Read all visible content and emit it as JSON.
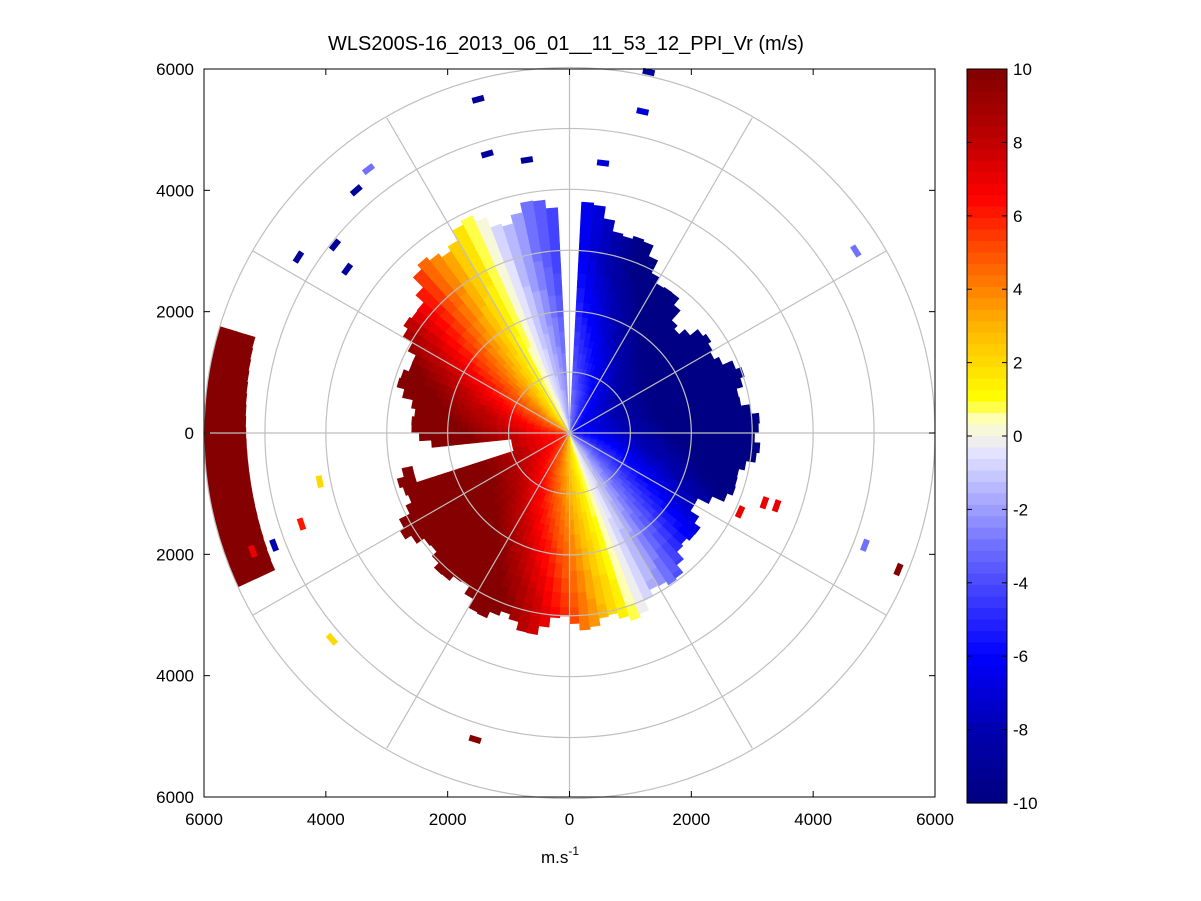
{
  "chart_data": {
    "type": "heatmap",
    "title": "WLS200S-16_2013_06_01__11_53_12_PPI_Vr (m/s)",
    "xlabel_base": "m.s",
    "xlabel_sup": "-1",
    "ylabel": "",
    "xlim": [
      -6000,
      6000
    ],
    "ylim": [
      -6000,
      6000
    ],
    "x_ticks": [
      -6000,
      -4000,
      -2000,
      0,
      2000,
      4000,
      6000
    ],
    "x_tick_labels": [
      "6000",
      "4000",
      "2000",
      "0",
      "2000",
      "4000",
      "6000"
    ],
    "y_ticks": [
      6000,
      4000,
      2000,
      0,
      -2000,
      -4000,
      -6000
    ],
    "y_tick_labels": [
      "6000",
      "4000",
      "2000",
      "0",
      "2000",
      "4000",
      "6000"
    ],
    "polar_grid": {
      "ring_radii": [
        1000,
        2000,
        3000,
        4000,
        5000,
        6000
      ],
      "spoke_angles_deg": [
        0,
        30,
        60,
        90,
        120,
        150,
        180,
        210,
        240,
        270,
        300,
        330
      ]
    },
    "colorbar": {
      "min": -10,
      "max": 10,
      "ticks": [
        10,
        8,
        6,
        4,
        2,
        0,
        -2,
        -4,
        -6,
        -8,
        -10
      ],
      "tick_labels": [
        "10",
        "8",
        "6",
        "4",
        "2",
        "0",
        "-2",
        "-4",
        "-6",
        "-8",
        "-10"
      ],
      "stops": [
        {
          "v": -10,
          "color": "#000080"
        },
        {
          "v": -8,
          "color": "#0000b0"
        },
        {
          "v": -6,
          "color": "#0000ff"
        },
        {
          "v": -3,
          "color": "#7070ff"
        },
        {
          "v": -0.4,
          "color": "#e6e6ff"
        },
        {
          "v": 0.4,
          "color": "#ffffc8"
        },
        {
          "v": 1,
          "color": "#ffff00"
        },
        {
          "v": 3,
          "color": "#ffb400"
        },
        {
          "v": 5,
          "color": "#ff5000"
        },
        {
          "v": 6.5,
          "color": "#ff0000"
        },
        {
          "v": 8,
          "color": "#c00000"
        },
        {
          "v": 10,
          "color": "#800000"
        }
      ]
    },
    "field": {
      "description_model": "radial velocity Vr ≈ -10·cos(θ - 22°) (θ measured counter-clockwise from +x), saturating at ±10 m/s",
      "zero_line_azimuth_deg": 112,
      "max_range_by_azimuth": [
        {
          "az": 0,
          "r": 3050
        },
        {
          "az": 10,
          "r": 2950
        },
        {
          "az": 20,
          "r": 2900
        },
        {
          "az": 30,
          "r": 2750
        },
        {
          "az": 45,
          "r": 2500
        },
        {
          "az": 60,
          "r": 3000
        },
        {
          "az": 75,
          "r": 3500
        },
        {
          "az": 88,
          "r": 3750
        },
        {
          "az": 92,
          "r": 3800
        },
        {
          "az": 105,
          "r": 3700
        },
        {
          "az": 120,
          "r": 3800
        },
        {
          "az": 135,
          "r": 3500
        },
        {
          "az": 150,
          "r": 3000
        },
        {
          "az": 165,
          "r": 2800
        },
        {
          "az": 175,
          "r": 2600
        },
        {
          "az": 185,
          "r": 2300
        },
        {
          "az": 195,
          "r": 2800
        },
        {
          "az": 210,
          "r": 3100
        },
        {
          "az": 225,
          "r": 3000
        },
        {
          "az": 240,
          "r": 3200
        },
        {
          "az": 255,
          "r": 3300
        },
        {
          "az": 270,
          "r": 3100
        },
        {
          "az": 285,
          "r": 3200
        },
        {
          "az": 300,
          "r": 3000
        },
        {
          "az": 315,
          "r": 2700
        },
        {
          "az": 330,
          "r": 2400
        },
        {
          "az": 345,
          "r": 2950
        },
        {
          "az": 360,
          "r": 3050
        }
      ],
      "gaps": [
        {
          "az_from": 88,
          "az_to": 92,
          "r_from": 0,
          "r_to": 4000
        },
        {
          "az_from": 245,
          "az_to": 247,
          "r_from": 800,
          "r_to": 4000
        },
        {
          "az_from": 186,
          "az_to": 197,
          "r_from": 1000,
          "r_to": 2600
        }
      ],
      "outer_arc": {
        "az_from": 163,
        "az_to": 205,
        "r_from": 5300,
        "r_to": 6000
      },
      "isolated_cells": [
        {
          "x": -1500,
          "y": 5500,
          "v": -9
        },
        {
          "x": 1300,
          "y": 5950,
          "v": -9
        },
        {
          "x": 1200,
          "y": 5300,
          "v": -7
        },
        {
          "x": -1350,
          "y": 4600,
          "v": -9
        },
        {
          "x": -700,
          "y": 4500,
          "v": -9
        },
        {
          "x": 550,
          "y": 4450,
          "v": -7
        },
        {
          "x": -3300,
          "y": 4350,
          "v": -3
        },
        {
          "x": -3500,
          "y": 4000,
          "v": -9
        },
        {
          "x": -4450,
          "y": 2900,
          "v": -9
        },
        {
          "x": -3850,
          "y": 3100,
          "v": -9
        },
        {
          "x": -3650,
          "y": 2700,
          "v": -9
        },
        {
          "x": 4700,
          "y": 3000,
          "v": -3
        },
        {
          "x": 4850,
          "y": -1850,
          "v": -3
        },
        {
          "x": 5400,
          "y": -2250,
          "v": 10
        },
        {
          "x": -4850,
          "y": -1850,
          "v": -8
        },
        {
          "x": -5200,
          "y": -1950,
          "v": 7
        },
        {
          "x": -3900,
          "y": -3400,
          "v": 2
        },
        {
          "x": -1550,
          "y": -5050,
          "v": 10
        },
        {
          "x": 3200,
          "y": -1150,
          "v": 7
        },
        {
          "x": 3400,
          "y": -1200,
          "v": 7
        },
        {
          "x": 2800,
          "y": -1300,
          "v": 7
        },
        {
          "x": -4100,
          "y": -800,
          "v": 2
        },
        {
          "x": -4400,
          "y": -1500,
          "v": 6
        }
      ]
    }
  }
}
